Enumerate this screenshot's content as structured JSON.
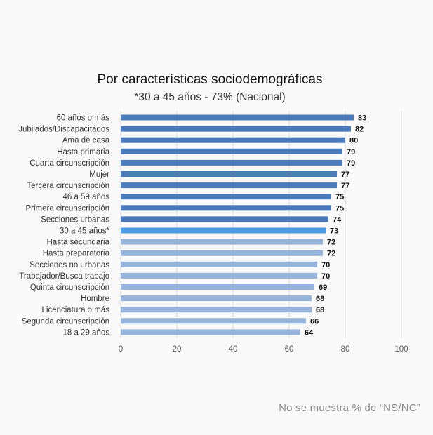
{
  "chart_data": {
    "type": "bar",
    "orientation": "horizontal",
    "title": "Por características sociodemográficas",
    "subtitle": "*30 a 45 años - 73% (Nacional)",
    "categories": [
      "60 años o más",
      "Jubilados/Discapacitados",
      "Ama de casa",
      "Hasta primaria",
      "Cuarta circunscripción",
      "Mujer",
      "Tercera circunscripción",
      "46 a 59 años",
      "Primera circunscripción",
      "Secciones urbanas",
      "30 a 45 años*",
      "Hasta secundaria",
      "Hasta preparatoria",
      "Secciones no urbanas",
      "Trabajador/Busca trabajo",
      "Quinta circunscripción",
      "Hombre",
      "Licenciatura o más",
      "Segunda circunscripción",
      "18 a 29 años"
    ],
    "values": [
      83,
      82,
      80,
      79,
      79,
      77,
      77,
      75,
      75,
      74,
      73,
      72,
      72,
      70,
      70,
      69,
      68,
      68,
      66,
      64
    ],
    "value_labels": [
      "83",
      "82",
      "80",
      "79",
      "79",
      "77",
      "77",
      "75",
      "75",
      "74",
      "73",
      "72",
      "72",
      "70",
      "70",
      "69",
      "68",
      "68",
      "66",
      "64"
    ],
    "bar_colors": [
      "#4a7ab8",
      "#4a7ab8",
      "#4a7ab8",
      "#4a7ab8",
      "#4a7ab8",
      "#4a7ab8",
      "#4a7ab8",
      "#4a7ab8",
      "#4a7ab8",
      "#4a7ab8",
      "#4a9be8",
      "#96b3d9",
      "#96b3d9",
      "#96b3d9",
      "#96b3d9",
      "#96b3d9",
      "#96b3d9",
      "#96b3d9",
      "#96b3d9",
      "#96b3d9"
    ],
    "xlim": [
      0,
      100
    ],
    "xticks": [
      0,
      20,
      40,
      60,
      80,
      100
    ],
    "xtick_labels": [
      "0",
      "20",
      "40",
      "60",
      "80",
      "100"
    ],
    "grid": true,
    "xlabel": "",
    "ylabel": ""
  },
  "footnote": "No se muestra % de “NS/NC”"
}
